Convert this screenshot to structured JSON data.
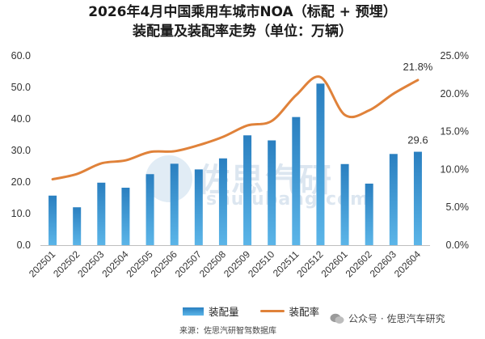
{
  "title_line1": "2026年4月中国乘用车城市NOA（标配 + 预埋）",
  "title_line2": "装配量及装配率走势（单位：万辆）",
  "source": "来源：佐思汽研智驾数据库",
  "wechat_label": "公众号 · 佐思汽车研究",
  "watermark": {
    "cn": "佐思汽研",
    "en": "shujubang.com"
  },
  "colors": {
    "bar_top": "#2a7fc0",
    "bar_bottom": "#5bb5e8",
    "line": "#e0823a"
  },
  "chart_data": {
    "type": "bar",
    "categories": [
      "202501",
      "202502",
      "202503",
      "202504",
      "202505",
      "202506",
      "202507",
      "202508",
      "202509",
      "202510",
      "202511",
      "202512",
      "202601",
      "202602",
      "202603",
      "202604"
    ],
    "series": [
      {
        "name": "装配量",
        "type": "bar",
        "axis": "left",
        "values": [
          15.7,
          12.0,
          19.8,
          18.2,
          22.5,
          25.8,
          24.0,
          27.5,
          34.8,
          33.2,
          40.6,
          51.2,
          25.7,
          19.5,
          28.9,
          29.6
        ]
      },
      {
        "name": "装配率",
        "type": "line",
        "axis": "right",
        "values": [
          8.7,
          9.4,
          10.8,
          11.2,
          12.3,
          12.4,
          13.2,
          14.3,
          15.8,
          16.4,
          19.8,
          22.2,
          17.2,
          17.8,
          20.0,
          21.8
        ]
      }
    ],
    "ylim_left": [
      0,
      60
    ],
    "yticks_left": [
      "0.0",
      "10.0",
      "20.0",
      "30.0",
      "40.0",
      "50.0",
      "60.0"
    ],
    "ylim_right": [
      0,
      25
    ],
    "yticks_right": [
      "0.0%",
      "5.0%",
      "10.0%",
      "15.0%",
      "20.0%",
      "25.0%"
    ],
    "data_labels": [
      {
        "series": "装配量",
        "index": 15,
        "text": "29.6"
      },
      {
        "series": "装配率",
        "index": 15,
        "text": "21.8%"
      }
    ],
    "legend": {
      "position": "bottom",
      "items": [
        "装配量",
        "装配率"
      ]
    },
    "grid": false
  }
}
